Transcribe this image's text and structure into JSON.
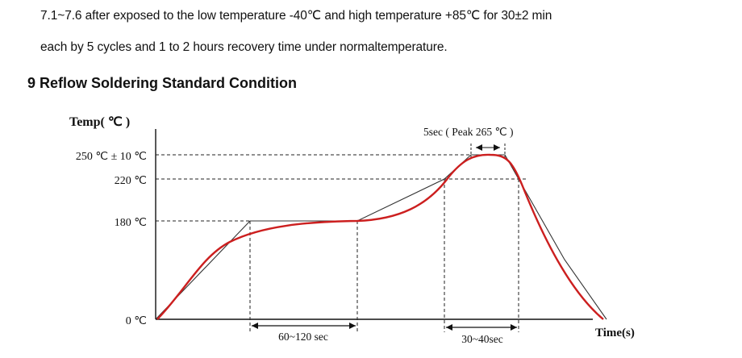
{
  "body_text": {
    "line1": "7.1~7.6 after exposed to the low temperature -40℃ and high temperature +85℃ for 30±2 min",
    "line2": "each by 5 cycles and 1 to 2 hours recovery time under normaltemperature."
  },
  "section": {
    "number": "9",
    "title": "Reflow Soldering Standard Condition",
    "heading": "9 Reflow Soldering Standard Condition"
  },
  "chart_data": {
    "type": "line",
    "title": "Reflow Soldering Standard Condition",
    "ylabel": "Temp( ℃ )",
    "xlabel": "Time(s)",
    "y_ticks": [
      {
        "value": 0,
        "label": "0 ℃"
      },
      {
        "value": 180,
        "label": "180 ℃"
      },
      {
        "value": 220,
        "label": "220 ℃"
      },
      {
        "value": 250,
        "label": "250 ℃ ± 10 ℃"
      }
    ],
    "annotations": {
      "peak": "5sec ( Peak 265 ℃ )",
      "preheat": "60~120 sec",
      "above_220": "30~40sec"
    },
    "series": [
      {
        "name": "profile (smoothed)",
        "color": "#cc1f1f"
      },
      {
        "name": "profile (linear)",
        "color": "#333333"
      }
    ],
    "colors": {
      "curve": "#cc1f1f",
      "linear": "#333333",
      "guides": "#222222"
    }
  }
}
